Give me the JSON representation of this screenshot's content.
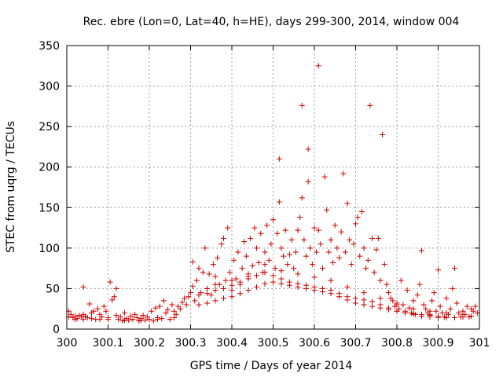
{
  "chart_data": {
    "type": "scatter",
    "title": "Rec. ebre (Lon=0, Lat=40, h=HE), days 299-300, 2014, window 004",
    "xlabel": "GPS time / Days of year 2014",
    "ylabel": "STEC from uqrg / TECUs",
    "xlim": [
      300,
      301
    ],
    "ylim": [
      0,
      350
    ],
    "xticks": [
      "300",
      "300.1",
      "300.2",
      "300.3",
      "300.4",
      "300.5",
      "300.6",
      "300.7",
      "300.8",
      "300.9",
      "301"
    ],
    "xtick_values": [
      300,
      300.1,
      300.2,
      300.3,
      300.4,
      300.5,
      300.6,
      300.7,
      300.8,
      300.9,
      301
    ],
    "yticks": [
      "0",
      "50",
      "100",
      "150",
      "200",
      "250",
      "300",
      "350"
    ],
    "ytick_values": [
      0,
      50,
      100,
      150,
      200,
      250,
      300,
      350
    ],
    "grid": true,
    "marker": "+",
    "color": "#cc0000",
    "series": [
      {
        "name": "STEC",
        "points": [
          [
            300.005,
            22
          ],
          [
            300.005,
            15
          ],
          [
            300.01,
            18
          ],
          [
            300.015,
            14
          ],
          [
            300.02,
            16
          ],
          [
            300.025,
            13
          ],
          [
            300.03,
            17
          ],
          [
            300.035,
            15
          ],
          [
            300.04,
            52
          ],
          [
            300.04,
            18
          ],
          [
            300.045,
            16
          ],
          [
            300.05,
            14
          ],
          [
            300.055,
            31
          ],
          [
            300.06,
            20
          ],
          [
            300.065,
            22
          ],
          [
            300.07,
            12
          ],
          [
            300.075,
            25
          ],
          [
            300.08,
            18
          ],
          [
            300.085,
            15
          ],
          [
            300.09,
            28
          ],
          [
            300.095,
            22
          ],
          [
            300.1,
            14
          ],
          [
            300.105,
            58
          ],
          [
            300.11,
            36
          ],
          [
            300.115,
            40
          ],
          [
            300.12,
            50
          ],
          [
            300.12,
            17
          ],
          [
            300.125,
            12
          ],
          [
            300.13,
            15
          ],
          [
            300.135,
            10
          ],
          [
            300.14,
            20
          ],
          [
            300.145,
            13
          ],
          [
            300.15,
            11
          ],
          [
            300.155,
            16
          ],
          [
            300.16,
            12
          ],
          [
            300.165,
            18
          ],
          [
            300.17,
            14
          ],
          [
            300.175,
            10
          ],
          [
            300.18,
            13
          ],
          [
            300.185,
            17
          ],
          [
            300.19,
            11
          ],
          [
            300.195,
            15
          ],
          [
            300.2,
            12
          ],
          [
            300.205,
            22
          ],
          [
            300.21,
            10
          ],
          [
            300.215,
            26
          ],
          [
            300.22,
            14
          ],
          [
            300.225,
            28
          ],
          [
            300.23,
            13
          ],
          [
            300.235,
            35
          ],
          [
            300.24,
            20
          ],
          [
            300.245,
            24
          ],
          [
            300.25,
            12
          ],
          [
            300.255,
            30
          ],
          [
            300.26,
            22
          ],
          [
            300.265,
            18
          ],
          [
            300.27,
            28
          ],
          [
            300.275,
            25
          ],
          [
            300.28,
            33
          ],
          [
            300.285,
            38
          ],
          [
            300.29,
            30
          ],
          [
            300.295,
            40
          ],
          [
            300.3,
            45
          ],
          [
            300.305,
            83
          ],
          [
            300.305,
            53
          ],
          [
            300.31,
            35
          ],
          [
            300.315,
            60
          ],
          [
            300.32,
            75
          ],
          [
            300.325,
            45
          ],
          [
            300.33,
            70
          ],
          [
            300.335,
            100
          ],
          [
            300.34,
            50
          ],
          [
            300.345,
            68
          ],
          [
            300.35,
            42
          ],
          [
            300.355,
            80
          ],
          [
            300.36,
            65
          ],
          [
            300.365,
            88
          ],
          [
            300.37,
            55
          ],
          [
            300.375,
            105
          ],
          [
            300.38,
            112
          ],
          [
            300.385,
            60
          ],
          [
            300.39,
            125
          ],
          [
            300.395,
            70
          ],
          [
            300.4,
            48
          ],
          [
            300.405,
            85
          ],
          [
            300.41,
            62
          ],
          [
            300.415,
            95
          ],
          [
            300.42,
            55
          ],
          [
            300.425,
            75
          ],
          [
            300.43,
            108
          ],
          [
            300.435,
            90
          ],
          [
            300.44,
            65
          ],
          [
            300.445,
            112
          ],
          [
            300.45,
            78
          ],
          [
            300.455,
            125
          ],
          [
            300.46,
            100
          ],
          [
            300.465,
            82
          ],
          [
            300.47,
            118
          ],
          [
            300.475,
            70
          ],
          [
            300.48,
            95
          ],
          [
            300.485,
            128
          ],
          [
            300.49,
            85
          ],
          [
            300.495,
            105
          ],
          [
            300.5,
            135
          ],
          [
            300.505,
            75
          ],
          [
            300.51,
            118
          ],
          [
            300.515,
            210
          ],
          [
            300.515,
            157
          ],
          [
            300.52,
            100
          ],
          [
            300.525,
            90
          ],
          [
            300.53,
            122
          ],
          [
            300.535,
            80
          ],
          [
            300.54,
            92
          ],
          [
            300.545,
            110
          ],
          [
            300.55,
            75
          ],
          [
            300.555,
            95
          ],
          [
            300.56,
            122
          ],
          [
            300.565,
            138
          ],
          [
            300.57,
            276
          ],
          [
            300.57,
            162
          ],
          [
            300.575,
            110
          ],
          [
            300.58,
            90
          ],
          [
            300.585,
            222
          ],
          [
            300.585,
            182
          ],
          [
            300.59,
            100
          ],
          [
            300.595,
            80
          ],
          [
            300.6,
            125
          ],
          [
            300.605,
            95
          ],
          [
            300.61,
            325
          ],
          [
            300.61,
            122
          ],
          [
            300.615,
            105
          ],
          [
            300.62,
            75
          ],
          [
            300.625,
            188
          ],
          [
            300.63,
            147
          ],
          [
            300.635,
            95
          ],
          [
            300.64,
            110
          ],
          [
            300.645,
            82
          ],
          [
            300.65,
            128
          ],
          [
            300.655,
            100
          ],
          [
            300.66,
            88
          ],
          [
            300.665,
            120
          ],
          [
            300.67,
            192
          ],
          [
            300.675,
            95
          ],
          [
            300.68,
            155
          ],
          [
            300.685,
            110
          ],
          [
            300.69,
            80
          ],
          [
            300.695,
            105
          ],
          [
            300.7,
            130
          ],
          [
            300.705,
            138
          ],
          [
            300.71,
            90
          ],
          [
            300.715,
            145
          ],
          [
            300.72,
            100
          ],
          [
            300.725,
            75
          ],
          [
            300.73,
            85
          ],
          [
            300.735,
            276
          ],
          [
            300.74,
            112
          ],
          [
            300.745,
            70
          ],
          [
            300.75,
            98
          ],
          [
            300.755,
            112
          ],
          [
            300.76,
            60
          ],
          [
            300.765,
            240
          ],
          [
            300.77,
            80
          ],
          [
            300.775,
            55
          ],
          [
            300.78,
            45
          ],
          [
            300.785,
            38
          ],
          [
            300.79,
            35
          ],
          [
            300.795,
            28
          ],
          [
            300.8,
            32
          ],
          [
            300.805,
            25
          ],
          [
            300.81,
            60
          ],
          [
            300.815,
            30
          ],
          [
            300.82,
            22
          ],
          [
            300.825,
            48
          ],
          [
            300.83,
            26
          ],
          [
            300.835,
            20
          ],
          [
            300.84,
            35
          ],
          [
            300.845,
            18
          ],
          [
            300.85,
            42
          ],
          [
            300.855,
            55
          ],
          [
            300.86,
            97
          ],
          [
            300.865,
            30
          ],
          [
            300.87,
            25
          ],
          [
            300.875,
            20
          ],
          [
            300.88,
            18
          ],
          [
            300.885,
            35
          ],
          [
            300.89,
            45
          ],
          [
            300.895,
            22
          ],
          [
            300.9,
            73
          ],
          [
            300.905,
            28
          ],
          [
            300.91,
            20
          ],
          [
            300.915,
            15
          ],
          [
            300.92,
            38
          ],
          [
            300.925,
            18
          ],
          [
            300.93,
            25
          ],
          [
            300.935,
            50
          ],
          [
            300.94,
            75
          ],
          [
            300.945,
            32
          ],
          [
            300.95,
            20
          ],
          [
            300.955,
            15
          ],
          [
            300.96,
            22
          ],
          [
            300.965,
            18
          ],
          [
            300.97,
            28
          ],
          [
            300.975,
            15
          ],
          [
            300.98,
            25
          ],
          [
            300.985,
            22
          ],
          [
            300.99,
            28
          ],
          [
            300.995,
            20
          ],
          [
            300.32,
            42
          ],
          [
            300.34,
            44
          ],
          [
            300.36,
            48
          ],
          [
            300.38,
            50
          ],
          [
            300.4,
            54
          ],
          [
            300.42,
            58
          ],
          [
            300.44,
            62
          ],
          [
            300.46,
            66
          ],
          [
            300.48,
            70
          ],
          [
            300.5,
            66
          ],
          [
            300.52,
            62
          ],
          [
            300.54,
            58
          ],
          [
            300.56,
            56
          ],
          [
            300.58,
            54
          ],
          [
            300.6,
            52
          ],
          [
            300.62,
            50
          ],
          [
            300.64,
            48
          ],
          [
            300.66,
            44
          ],
          [
            300.68,
            40
          ],
          [
            300.7,
            38
          ],
          [
            300.72,
            36
          ],
          [
            300.74,
            34
          ],
          [
            300.76,
            30
          ],
          [
            300.78,
            26
          ],
          [
            300.8,
            22
          ],
          [
            300.82,
            20
          ],
          [
            300.84,
            18
          ],
          [
            300.86,
            16
          ],
          [
            300.88,
            15
          ],
          [
            300.9,
            14
          ],
          [
            300.92,
            14
          ],
          [
            300.94,
            14
          ],
          [
            300.96,
            15
          ],
          [
            300.98,
            16
          ],
          [
            300.32,
            30
          ],
          [
            300.34,
            32
          ],
          [
            300.36,
            35
          ],
          [
            300.38,
            38
          ],
          [
            300.4,
            40
          ],
          [
            300.42,
            44
          ],
          [
            300.44,
            48
          ],
          [
            300.46,
            52
          ],
          [
            300.48,
            56
          ],
          [
            300.5,
            58
          ],
          [
            300.52,
            56
          ],
          [
            300.54,
            54
          ],
          [
            300.56,
            52
          ],
          [
            300.58,
            50
          ],
          [
            300.6,
            48
          ],
          [
            300.62,
            46
          ],
          [
            300.64,
            44
          ],
          [
            300.66,
            40
          ],
          [
            300.68,
            36
          ],
          [
            300.7,
            32
          ],
          [
            300.72,
            30
          ],
          [
            300.74,
            28
          ],
          [
            300.76,
            26
          ],
          [
            300.78,
            24
          ],
          [
            300.8,
            22
          ],
          [
            300.82,
            20
          ],
          [
            300.84,
            19
          ],
          [
            300.86,
            18
          ],
          [
            300.88,
            17
          ],
          [
            300.9,
            16
          ],
          [
            300.36,
            55
          ],
          [
            300.4,
            60
          ],
          [
            300.44,
            68
          ],
          [
            300.48,
            80
          ],
          [
            300.52,
            72
          ],
          [
            300.56,
            68
          ],
          [
            300.6,
            64
          ],
          [
            300.64,
            60
          ],
          [
            300.68,
            52
          ],
          [
            300.72,
            45
          ],
          [
            300.76,
            38
          ],
          [
            300.8,
            30
          ],
          [
            300.84,
            25
          ],
          [
            300.88,
            22
          ],
          [
            300.92,
            20
          ],
          [
            300.96,
            18
          ],
          [
            300.02,
            12
          ],
          [
            300.04,
            12
          ],
          [
            300.06,
            13
          ],
          [
            300.08,
            12
          ],
          [
            300.1,
            12
          ],
          [
            300.14,
            11
          ],
          [
            300.18,
            11
          ],
          [
            300.22,
            12
          ],
          [
            300.26,
            14
          ]
        ]
      }
    ]
  }
}
